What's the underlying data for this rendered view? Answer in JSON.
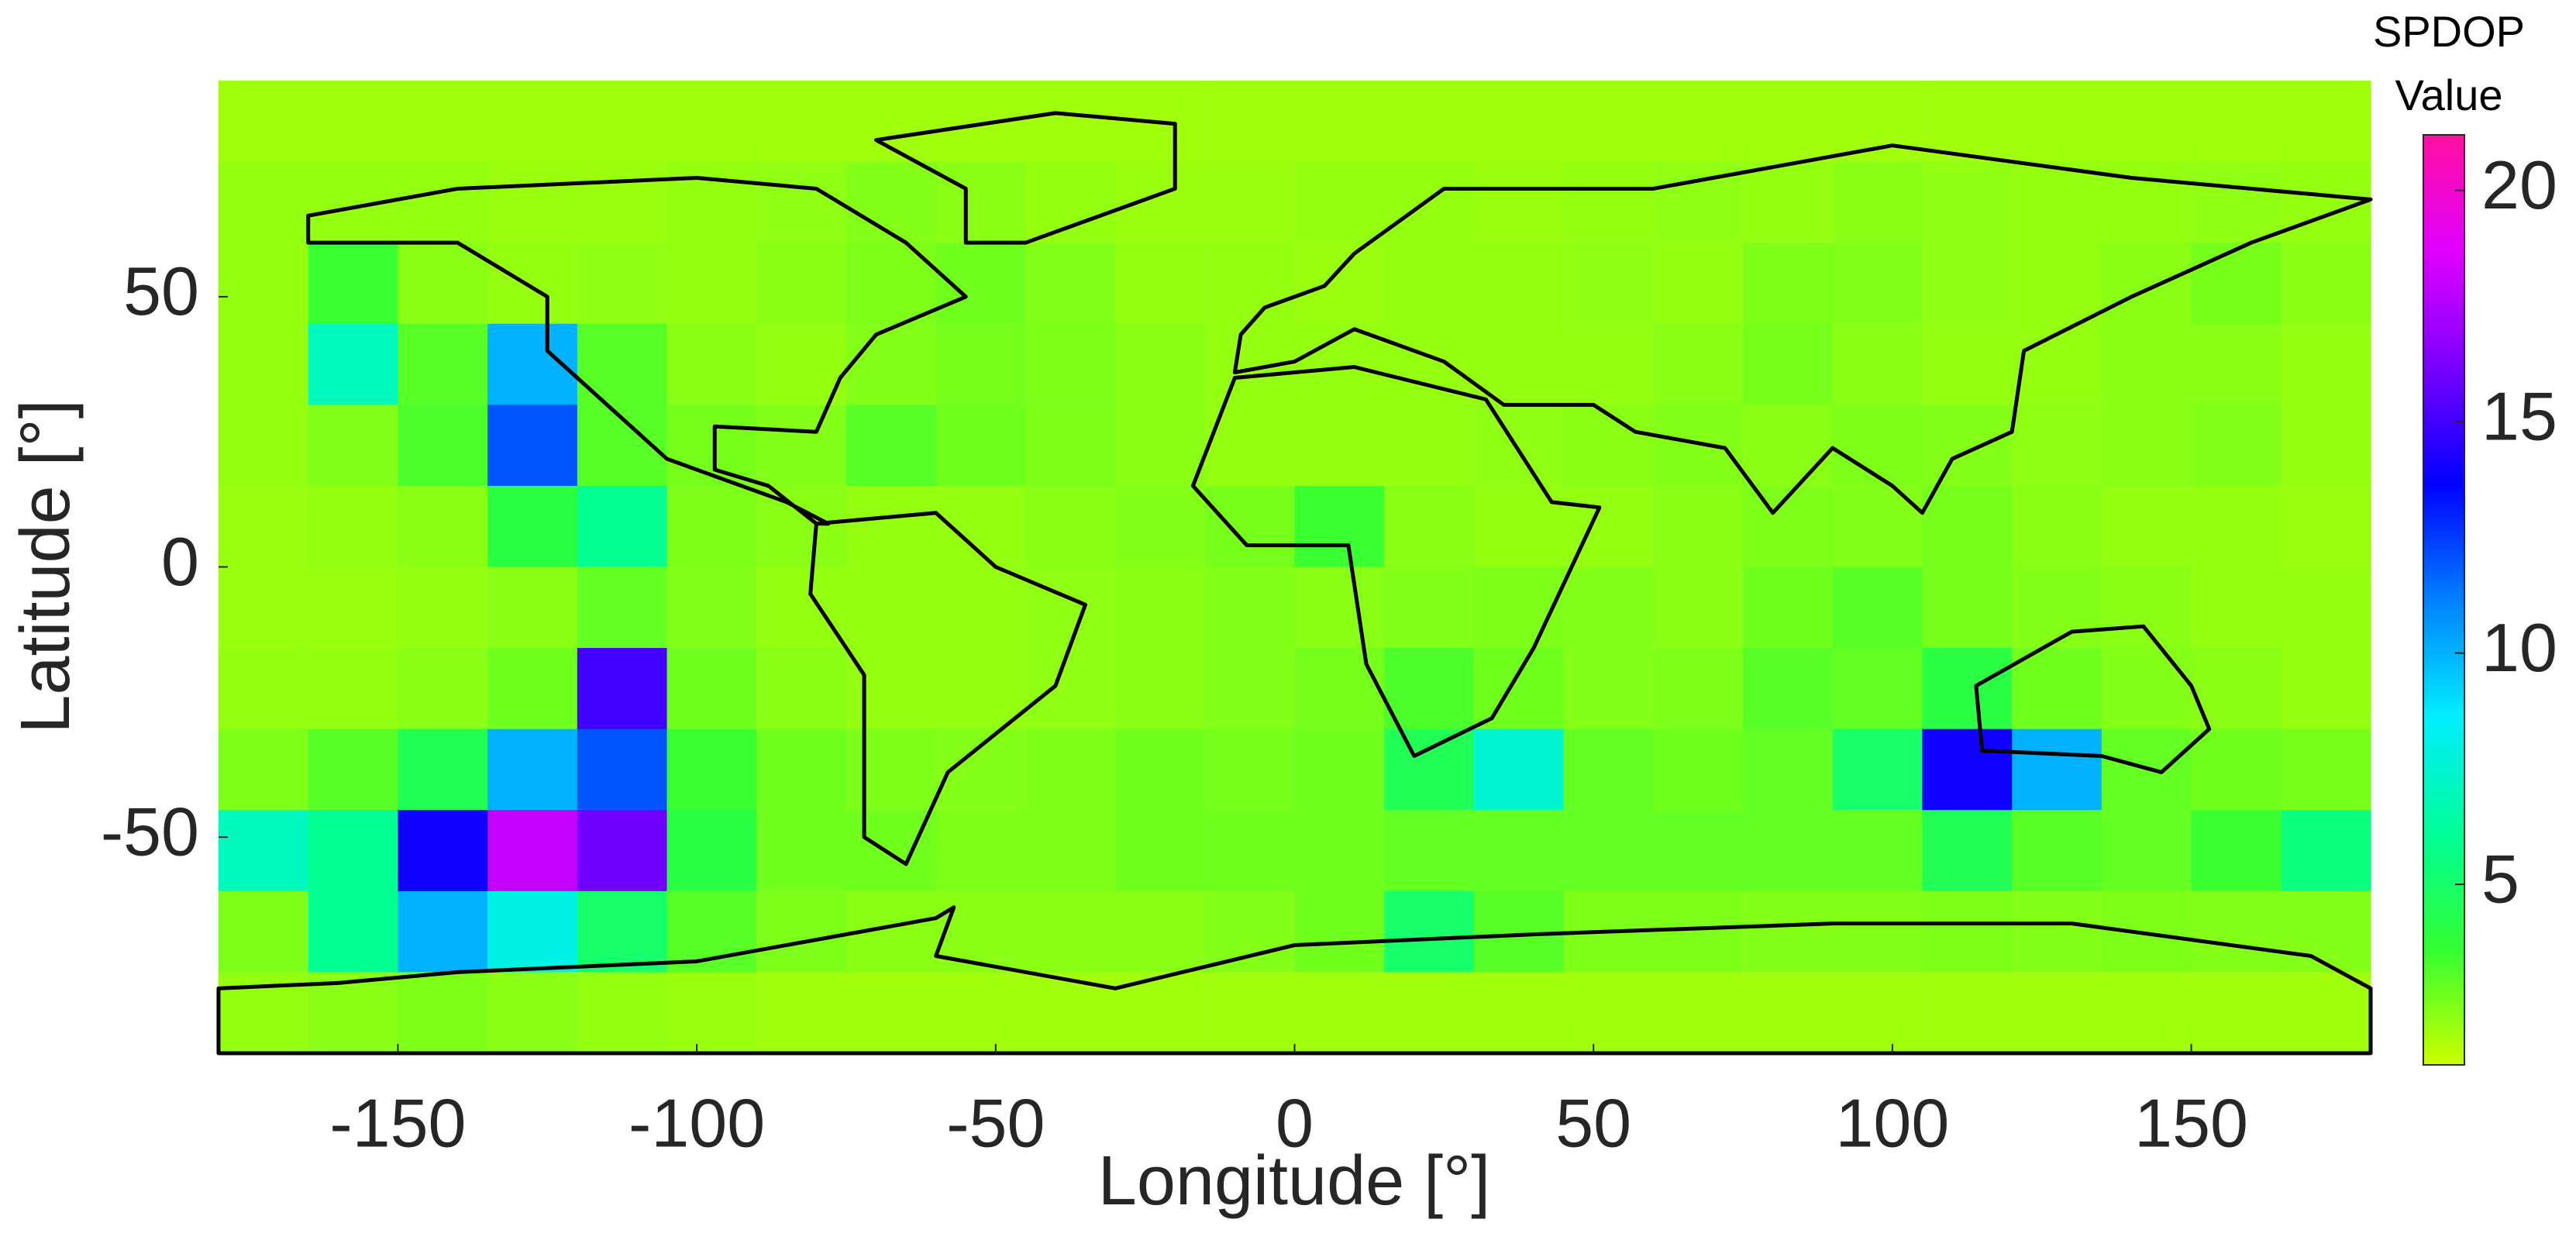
{
  "chart_data": {
    "type": "heatmap",
    "x_label": "Longitude [°]",
    "y_label": "Latitude [°]",
    "colorbar_title": "SPDOP Value",
    "x": [
      -172.5,
      -157.5,
      -142.5,
      -127.5,
      -112.5,
      -97.5,
      -82.5,
      -67.5,
      -52.5,
      -37.5,
      -22.5,
      -7.5,
      7.5,
      22.5,
      37.5,
      52.5,
      67.5,
      82.5,
      97.5,
      112.5,
      127.5,
      142.5,
      157.5,
      172.5
    ],
    "y": [
      82.5,
      67.5,
      52.5,
      37.5,
      22.5,
      7.5,
      -7.5,
      -22.5,
      -37.5,
      -52.5,
      -67.5,
      -82.5
    ],
    "z": [
      [
        1.8,
        1.8,
        1.8,
        1.8,
        1.8,
        1.8,
        1.8,
        1.8,
        1.8,
        1.8,
        1.8,
        1.8,
        1.8,
        1.8,
        1.8,
        1.8,
        1.8,
        1.8,
        1.8,
        1.8,
        1.8,
        1.8,
        1.8,
        1.8
      ],
      [
        2.0,
        2.0,
        2.0,
        1.9,
        1.9,
        2.0,
        2.1,
        2.3,
        2.2,
        2.0,
        1.9,
        1.9,
        2.0,
        2.0,
        1.9,
        2.0,
        2.1,
        2.0,
        2.2,
        2.1,
        2.0,
        2.0,
        2.1,
        2.0
      ],
      [
        2.0,
        3.5,
        2.2,
        2.0,
        2.1,
        2.0,
        2.2,
        2.4,
        2.6,
        2.3,
        2.0,
        2.0,
        1.9,
        2.0,
        2.0,
        2.1,
        2.0,
        2.4,
        2.3,
        2.1,
        2.0,
        2.2,
        2.5,
        2.2
      ],
      [
        2.0,
        7.0,
        3.0,
        10.0,
        3.0,
        2.2,
        2.0,
        2.3,
        2.5,
        2.4,
        2.2,
        2.0,
        2.0,
        2.0,
        2.0,
        2.0,
        2.2,
        2.5,
        2.2,
        2.0,
        2.0,
        2.2,
        2.2,
        2.0
      ],
      [
        2.0,
        2.3,
        3.2,
        12.0,
        3.0,
        2.5,
        2.3,
        3.0,
        2.6,
        2.4,
        2.2,
        2.0,
        2.0,
        2.0,
        2.1,
        2.2,
        2.3,
        2.2,
        2.4,
        2.3,
        2.1,
        2.2,
        2.3,
        2.0
      ],
      [
        1.9,
        2.0,
        2.2,
        4.0,
        6.0,
        2.4,
        2.2,
        2.0,
        2.0,
        2.2,
        2.3,
        2.5,
        3.5,
        2.2,
        2.0,
        2.0,
        2.2,
        2.4,
        2.3,
        2.5,
        2.2,
        2.0,
        2.0,
        1.9
      ],
      [
        1.9,
        1.9,
        2.0,
        2.2,
        2.8,
        2.3,
        2.0,
        2.0,
        2.0,
        2.1,
        2.2,
        2.3,
        2.2,
        2.3,
        2.4,
        2.3,
        2.2,
        2.6,
        3.0,
        2.5,
        2.3,
        2.2,
        2.0,
        2.0
      ],
      [
        2.0,
        2.0,
        2.2,
        2.6,
        15.0,
        2.6,
        2.2,
        2.0,
        2.0,
        2.1,
        2.2,
        2.3,
        2.5,
        3.2,
        2.6,
        2.3,
        2.4,
        3.0,
        2.8,
        4.0,
        2.6,
        2.3,
        2.2,
        2.0
      ],
      [
        2.4,
        3.0,
        4.5,
        10.0,
        12.0,
        3.5,
        2.6,
        2.4,
        2.3,
        2.4,
        2.6,
        2.5,
        2.6,
        4.5,
        7.5,
        2.8,
        2.6,
        2.8,
        5.0,
        14.0,
        10.0,
        2.8,
        2.6,
        2.5
      ],
      [
        7.0,
        6.0,
        14.0,
        18.0,
        16.0,
        4.0,
        2.6,
        2.6,
        2.4,
        2.4,
        2.6,
        2.6,
        2.6,
        2.8,
        2.8,
        2.8,
        2.8,
        2.8,
        2.8,
        4.5,
        3.0,
        2.8,
        3.5,
        5.5
      ],
      [
        2.4,
        6.0,
        10.0,
        8.0,
        5.0,
        3.0,
        2.4,
        2.2,
        2.2,
        2.2,
        2.2,
        2.3,
        2.6,
        5.0,
        3.0,
        2.4,
        2.4,
        2.3,
        2.3,
        2.4,
        2.3,
        2.4,
        2.3,
        2.3
      ],
      [
        2.0,
        2.2,
        2.4,
        2.2,
        2.0,
        1.9,
        1.8,
        1.8,
        1.8,
        1.8,
        1.8,
        1.8,
        1.8,
        1.8,
        1.8,
        1.8,
        1.8,
        1.8,
        1.8,
        1.8,
        1.8,
        1.8,
        1.8,
        1.8
      ]
    ],
    "xlim": [
      -180,
      180
    ],
    "ylim": [
      -90,
      90
    ],
    "xticks": [
      -150,
      -100,
      -50,
      0,
      50,
      100,
      150
    ],
    "yticks": [
      -50,
      0,
      50
    ],
    "clim": [
      1.1,
      21.2
    ],
    "cticks": [
      5,
      10,
      15,
      20
    ],
    "colormap": [
      "#ccff00",
      "#33ff33",
      "#00ff99",
      "#00eeff",
      "#0080ff",
      "#0000ff",
      "#7a00ff",
      "#e000ff",
      "#ff10a0"
    ]
  }
}
